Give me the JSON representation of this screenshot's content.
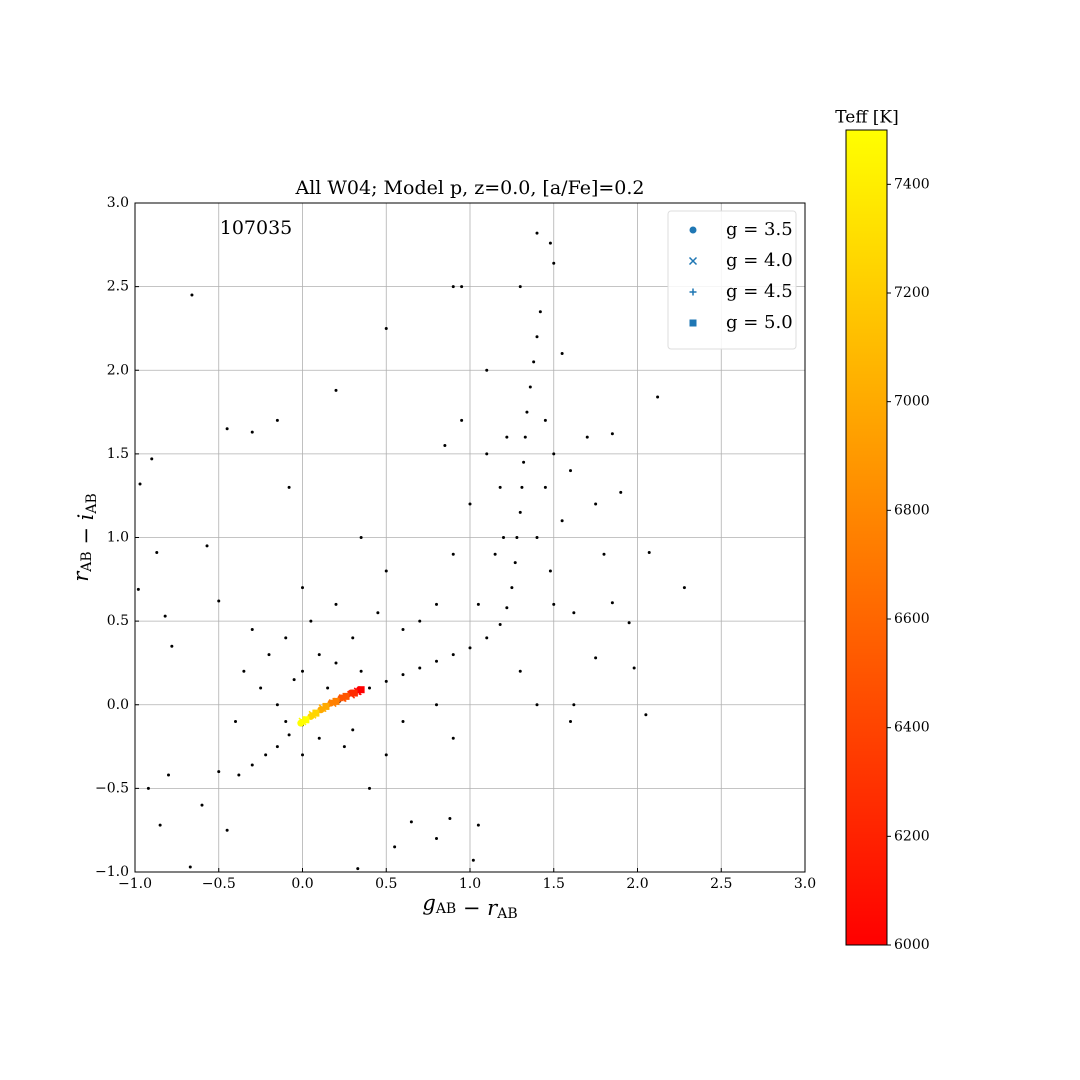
{
  "chart_data": {
    "type": "scatter",
    "title": "All W04; Model p, z=0.0, [a/Fe]=0.2",
    "annotation": "107035",
    "xlabel": [
      {
        "text": "g",
        "sub": "AB"
      },
      {
        "text": " − r",
        "sub": "AB"
      }
    ],
    "ylabel": [
      {
        "text": "r",
        "sub": "AB"
      },
      {
        "text": " − i",
        "sub": "AB"
      }
    ],
    "xlim": [
      -1.0,
      3.0
    ],
    "ylim": [
      -1.0,
      3.0
    ],
    "xticks": [
      {
        "value": -1.0,
        "label": "−1.0"
      },
      {
        "value": -0.5,
        "label": "−0.5"
      },
      {
        "value": 0.0,
        "label": "0.0"
      },
      0.5,
      {
        "value": 1.0,
        "label": "1.0"
      },
      1.5,
      {
        "value": 2.0,
        "label": "2.0"
      },
      2.5,
      {
        "value": 3.0,
        "label": "3.0"
      }
    ],
    "yticks": [
      {
        "value": -1.0,
        "label": "−1.0"
      },
      {
        "value": -0.5,
        "label": "−0.5"
      },
      {
        "value": 0.0,
        "label": "0.0"
      },
      0.5,
      {
        "value": 1.0,
        "label": "1.0"
      },
      1.5,
      {
        "value": 2.0,
        "label": "2.0"
      },
      2.5,
      {
        "value": 3.0,
        "label": "3.0"
      }
    ],
    "grid": true,
    "legend_position": "upper right",
    "legend_color": "#1f77b4",
    "colorbar": {
      "label": "Teff [K]",
      "clim": [
        6000,
        7500
      ],
      "ticks": [
        6000,
        6200,
        6400,
        6600,
        6800,
        7000,
        7200,
        7400
      ],
      "colors": [
        "#ff0000",
        "#ffff00"
      ]
    },
    "stars": {
      "color": "#000000",
      "x": [
        -0.38,
        -0.3,
        -0.22,
        -0.15,
        -0.08,
        0.0,
        0.08,
        0.15,
        0.22,
        0.3,
        0.4,
        0.5,
        0.6,
        0.7,
        0.8,
        0.9,
        1.0,
        1.1,
        1.18,
        1.22,
        1.25,
        1.27,
        1.28,
        1.3,
        1.31,
        1.32,
        1.33,
        1.34,
        1.36,
        1.38,
        1.4,
        1.42,
        1.2,
        1.4,
        1.45,
        1.18,
        1.22,
        1.45,
        1.15,
        1.48,
        1.1,
        1.5,
        1.05,
        1.5,
        1.55,
        1.6,
        1.0,
        0.95,
        1.1,
        1.3,
        1.55,
        1.7,
        1.75,
        1.8,
        1.62,
        0.85,
        0.9,
        0.8,
        0.7,
        0.6,
        0.6,
        0.8,
        0.9,
        0.5,
        0.4,
        1.3,
        1.4,
        -0.2,
        -0.1,
        0.0,
        0.1,
        0.2,
        -0.25,
        -0.15,
        0.05,
        0.3,
        0.35,
        -0.3,
        0.0,
        0.2,
        -0.1,
        0.1,
        0.25,
        0.0,
        -0.05,
        0.15,
        0.45,
        -0.35,
        -0.4,
        0.3,
        0.5,
        0.35,
        -0.66,
        -0.45,
        -0.3,
        -0.9,
        -0.97,
        -0.15,
        0.2,
        0.5,
        -0.08,
        2.28,
        2.07,
        2.05,
        -0.67,
        1.4,
        1.48,
        1.5,
        0.9,
        0.95,
        1.05,
        1.02,
        0.33,
        -0.87,
        -0.82,
        -0.78,
        -0.57,
        -0.5,
        -0.6,
        -0.8,
        -0.92,
        -0.85,
        -0.45,
        -0.5,
        0.65,
        0.55,
        0.8,
        0.88,
        1.6,
        1.62,
        1.75,
        1.85,
        1.9,
        1.85,
        2.12,
        1.98,
        1.95,
        -0.98
      ],
      "y": [
        -0.42,
        -0.36,
        -0.3,
        -0.25,
        -0.18,
        -0.12,
        -0.06,
        -0.02,
        0.02,
        0.06,
        0.1,
        0.14,
        0.18,
        0.22,
        0.26,
        0.3,
        0.34,
        0.4,
        0.48,
        0.58,
        0.7,
        0.85,
        1.0,
        1.15,
        1.3,
        1.45,
        1.6,
        1.75,
        1.9,
        2.05,
        2.2,
        2.35,
        1.0,
        1.0,
        1.3,
        1.3,
        1.6,
        1.7,
        0.9,
        0.8,
        1.5,
        1.5,
        0.6,
        0.6,
        1.1,
        1.4,
        1.2,
        1.7,
        2.0,
        2.5,
        2.1,
        1.6,
        1.2,
        0.9,
        0.55,
        1.55,
        0.9,
        0.6,
        0.5,
        0.45,
        -0.1,
        0.0,
        -0.2,
        -0.3,
        -0.5,
        0.2,
        0.0,
        0.3,
        0.4,
        0.2,
        0.3,
        0.25,
        0.1,
        0.0,
        0.5,
        0.4,
        0.2,
        0.45,
        0.7,
        0.6,
        -0.1,
        -0.2,
        -0.25,
        -0.3,
        0.15,
        0.1,
        0.55,
        0.2,
        -0.1,
        -0.15,
        0.8,
        1.0,
        2.45,
        1.65,
        1.63,
        1.47,
        1.32,
        1.7,
        1.88,
        2.25,
        1.3,
        0.7,
        0.91,
        -0.06,
        -0.97,
        2.82,
        2.76,
        2.64,
        2.5,
        2.5,
        -0.72,
        -0.93,
        -0.98,
        0.91,
        0.53,
        0.35,
        0.95,
        0.62,
        -0.6,
        -0.42,
        -0.5,
        -0.72,
        -0.75,
        -0.4,
        -0.7,
        -0.85,
        -0.8,
        -0.68,
        -0.1,
        0.0,
        0.28,
        0.61,
        1.27,
        1.62,
        1.84,
        0.22,
        0.49,
        0.69
      ]
    },
    "series": [
      {
        "name": "g = 3.5",
        "marker": "circle",
        "x": [
          -0.01,
          0.05,
          0.11,
          0.17,
          0.23,
          0.29,
          0.34
        ],
        "y": [
          -0.11,
          -0.07,
          -0.03,
          0.01,
          0.04,
          0.07,
          0.09
        ],
        "teff": [
          7500,
          7250,
          7000,
          6750,
          6500,
          6250,
          6000
        ]
      },
      {
        "name": "g = 4.0",
        "marker": "x",
        "x": [
          0.0,
          0.06,
          0.12,
          0.18,
          0.24,
          0.29,
          0.33
        ],
        "y": [
          -0.1,
          -0.06,
          -0.02,
          0.01,
          0.04,
          0.06,
          0.08
        ],
        "teff": [
          7500,
          7250,
          7000,
          6750,
          6500,
          6250,
          6000
        ]
      },
      {
        "name": "g = 4.5",
        "marker": "plus",
        "x": [
          0.01,
          0.07,
          0.13,
          0.19,
          0.25,
          0.3,
          0.34
        ],
        "y": [
          -0.09,
          -0.05,
          -0.02,
          0.02,
          0.04,
          0.07,
          0.08
        ],
        "teff": [
          7500,
          7250,
          7000,
          6750,
          6500,
          6250,
          6000
        ]
      },
      {
        "name": "g = 5.0",
        "marker": "square",
        "x": [
          0.02,
          0.08,
          0.14,
          0.2,
          0.26,
          0.31,
          0.35
        ],
        "y": [
          -0.09,
          -0.05,
          -0.01,
          0.02,
          0.05,
          0.07,
          0.09
        ],
        "teff": [
          7500,
          7250,
          7000,
          6750,
          6500,
          6250,
          6000
        ]
      }
    ]
  }
}
